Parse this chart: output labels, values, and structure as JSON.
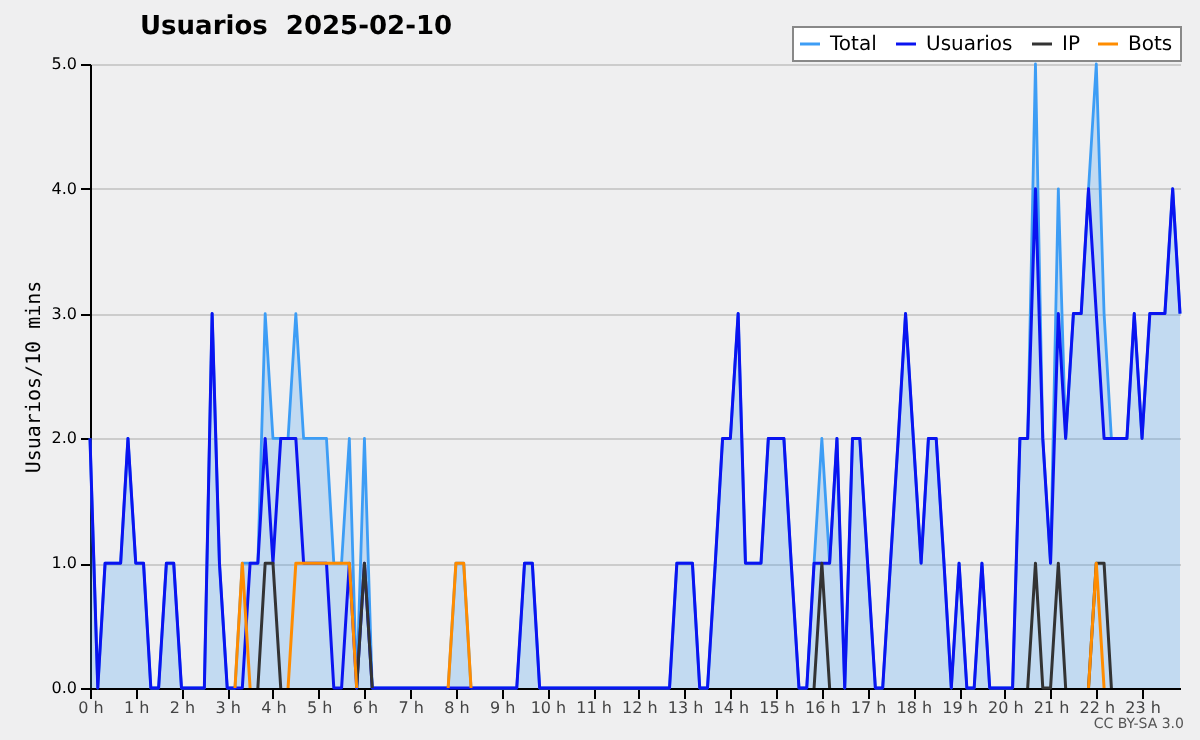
{
  "chart_data": {
    "type": "line",
    "title": "Usuarios  2025-02-10",
    "ylabel": "Usuarios/10 mins",
    "annotations": [
      "CC BY-SA 3.0"
    ],
    "x": [
      0,
      0.17,
      0.33,
      0.5,
      0.67,
      0.83,
      1,
      1.17,
      1.33,
      1.5,
      1.67,
      1.83,
      2,
      2.17,
      2.33,
      2.5,
      2.67,
      2.83,
      3,
      3.17,
      3.33,
      3.5,
      3.67,
      3.83,
      4,
      4.17,
      4.33,
      4.5,
      4.67,
      4.83,
      5,
      5.17,
      5.33,
      5.5,
      5.67,
      5.83,
      6,
      6.17,
      6.33,
      6.5,
      6.67,
      6.83,
      7,
      7.17,
      7.33,
      7.5,
      7.67,
      7.83,
      8,
      8.17,
      8.33,
      8.5,
      8.67,
      8.83,
      9,
      9.17,
      9.33,
      9.5,
      9.67,
      9.83,
      10,
      10.17,
      10.33,
      10.5,
      10.67,
      10.83,
      11,
      11.17,
      11.33,
      11.5,
      11.67,
      11.83,
      12,
      12.17,
      12.33,
      12.5,
      12.67,
      12.83,
      13,
      13.17,
      13.33,
      13.5,
      13.67,
      13.83,
      14,
      14.17,
      14.33,
      14.5,
      14.67,
      14.83,
      15,
      15.17,
      15.33,
      15.5,
      15.67,
      15.83,
      16,
      16.17,
      16.33,
      16.5,
      16.67,
      16.83,
      17,
      17.17,
      17.33,
      17.5,
      17.67,
      17.83,
      18,
      18.17,
      18.33,
      18.5,
      18.67,
      18.83,
      19,
      19.17,
      19.33,
      19.5,
      19.67,
      19.83,
      20,
      20.17,
      20.33,
      20.5,
      20.67,
      20.83,
      21,
      21.17,
      21.33,
      21.5,
      21.67,
      21.83,
      22,
      22.17,
      22.33,
      22.5,
      22.67,
      22.83,
      23,
      23.17,
      23.33,
      23.5,
      23.67,
      23.83
    ],
    "series": [
      {
        "name": "Total",
        "type": "area",
        "color": "#3d9df5",
        "values": [
          2,
          0,
          1,
          1,
          1,
          2,
          1,
          1,
          0,
          0,
          1,
          1,
          0,
          0,
          0,
          0,
          3,
          1,
          0,
          0,
          1,
          1,
          1,
          3,
          2,
          2,
          2,
          3,
          2,
          2,
          2,
          2,
          1,
          1,
          2,
          0,
          2,
          0,
          0,
          0,
          0,
          0,
          0,
          0,
          0,
          0,
          0,
          0,
          1,
          1,
          0,
          0,
          0,
          0,
          0,
          0,
          0,
          1,
          1,
          0,
          0,
          0,
          0,
          0,
          0,
          0,
          0,
          0,
          0,
          0,
          0,
          0,
          0,
          0,
          0,
          0,
          0,
          1,
          1,
          1,
          0,
          0,
          1,
          2,
          2,
          3,
          1,
          1,
          1,
          2,
          2,
          2,
          1,
          0,
          0,
          1,
          2,
          1,
          2,
          0,
          2,
          2,
          1,
          0,
          0,
          1,
          2,
          3,
          2,
          1,
          2,
          2,
          1,
          0,
          1,
          0,
          0,
          1,
          0,
          0,
          0,
          0,
          2,
          2,
          5,
          2,
          1,
          4,
          2,
          3,
          3,
          4,
          5,
          3,
          2,
          2,
          2,
          3,
          2,
          3,
          3,
          3,
          4,
          3
        ]
      },
      {
        "name": "Usuarios",
        "color": "#0a14f0",
        "values": [
          2,
          0,
          1,
          1,
          1,
          2,
          1,
          1,
          0,
          0,
          1,
          1,
          0,
          0,
          0,
          0,
          3,
          1,
          0,
          0,
          0,
          1,
          1,
          2,
          1,
          2,
          2,
          2,
          1,
          1,
          1,
          1,
          0,
          0,
          1,
          0,
          1,
          0,
          0,
          0,
          0,
          0,
          0,
          0,
          0,
          0,
          0,
          0,
          0,
          0,
          0,
          0,
          0,
          0,
          0,
          0,
          0,
          1,
          1,
          0,
          0,
          0,
          0,
          0,
          0,
          0,
          0,
          0,
          0,
          0,
          0,
          0,
          0,
          0,
          0,
          0,
          0,
          1,
          1,
          1,
          0,
          0,
          1,
          2,
          2,
          3,
          1,
          1,
          1,
          2,
          2,
          2,
          1,
          0,
          0,
          1,
          1,
          1,
          2,
          0,
          2,
          2,
          1,
          0,
          0,
          1,
          2,
          3,
          2,
          1,
          2,
          2,
          1,
          0,
          1,
          0,
          0,
          1,
          0,
          0,
          0,
          0,
          2,
          2,
          4,
          2,
          1,
          3,
          2,
          3,
          3,
          4,
          3,
          2,
          2,
          2,
          2,
          3,
          2,
          3,
          3,
          3,
          4,
          3
        ]
      },
      {
        "name": "IP",
        "color": "#333333",
        "values": [
          null,
          null,
          null,
          null,
          null,
          null,
          null,
          null,
          null,
          null,
          null,
          null,
          null,
          null,
          null,
          null,
          null,
          null,
          null,
          null,
          null,
          null,
          0,
          1,
          1,
          0,
          null,
          null,
          null,
          null,
          null,
          null,
          null,
          null,
          null,
          0,
          1,
          0,
          null,
          null,
          null,
          null,
          null,
          null,
          null,
          null,
          null,
          null,
          null,
          null,
          null,
          null,
          null,
          null,
          null,
          null,
          null,
          null,
          null,
          null,
          null,
          null,
          null,
          null,
          null,
          null,
          null,
          null,
          null,
          null,
          null,
          null,
          null,
          null,
          null,
          null,
          null,
          null,
          null,
          null,
          null,
          null,
          null,
          null,
          null,
          null,
          null,
          null,
          null,
          null,
          null,
          null,
          null,
          null,
          null,
          0,
          1,
          0,
          null,
          null,
          null,
          null,
          null,
          null,
          null,
          null,
          null,
          null,
          null,
          null,
          null,
          null,
          null,
          null,
          null,
          null,
          null,
          null,
          null,
          null,
          null,
          null,
          null,
          0,
          1,
          0,
          0,
          1,
          0,
          null,
          null,
          0,
          1,
          1,
          0,
          null,
          null,
          null,
          null,
          null,
          null,
          null,
          null,
          null
        ]
      },
      {
        "name": "Bots",
        "color": "#ff8c00",
        "values": [
          null,
          null,
          null,
          null,
          null,
          null,
          null,
          null,
          null,
          null,
          null,
          null,
          null,
          null,
          null,
          null,
          null,
          null,
          null,
          0,
          1,
          0,
          null,
          null,
          null,
          null,
          0,
          1,
          1,
          1,
          1,
          1,
          1,
          1,
          1,
          0,
          null,
          null,
          null,
          null,
          null,
          null,
          null,
          null,
          null,
          null,
          null,
          0,
          1,
          1,
          0,
          null,
          null,
          null,
          null,
          null,
          null,
          null,
          null,
          null,
          null,
          null,
          null,
          null,
          null,
          null,
          null,
          null,
          null,
          null,
          null,
          null,
          null,
          null,
          null,
          null,
          null,
          null,
          null,
          null,
          null,
          null,
          null,
          null,
          null,
          null,
          null,
          null,
          null,
          null,
          null,
          null,
          null,
          null,
          null,
          null,
          null,
          null,
          null,
          null,
          null,
          null,
          null,
          null,
          null,
          null,
          null,
          null,
          null,
          null,
          null,
          null,
          null,
          null,
          null,
          null,
          null,
          null,
          null,
          null,
          null,
          null,
          null,
          null,
          null,
          null,
          null,
          null,
          null,
          null,
          null,
          0,
          1,
          0,
          null,
          null,
          null,
          null,
          null,
          null,
          null,
          null,
          null,
          null
        ]
      }
    ],
    "xlim": [
      0,
      23.83
    ],
    "xticks": [
      {
        "value": 0,
        "label": "0 h"
      },
      {
        "value": 1,
        "label": "1 h"
      },
      {
        "value": 2,
        "label": "2 h"
      },
      {
        "value": 3,
        "label": "3 h"
      },
      {
        "value": 4,
        "label": "4 h"
      },
      {
        "value": 5,
        "label": "5 h"
      },
      {
        "value": 6,
        "label": "6 h"
      },
      {
        "value": 7,
        "label": "7 h"
      },
      {
        "value": 8,
        "label": "8 h"
      },
      {
        "value": 9,
        "label": "9 h"
      },
      {
        "value": 10,
        "label": "10 h"
      },
      {
        "value": 11,
        "label": "11 h"
      },
      {
        "value": 12,
        "label": "12 h"
      },
      {
        "value": 13,
        "label": "13 h"
      },
      {
        "value": 14,
        "label": "14 h"
      },
      {
        "value": 15,
        "label": "15 h"
      },
      {
        "value": 16,
        "label": "16 h"
      },
      {
        "value": 17,
        "label": "17 h"
      },
      {
        "value": 18,
        "label": "18 h"
      },
      {
        "value": 19,
        "label": "19 h"
      },
      {
        "value": 20,
        "label": "20 h"
      },
      {
        "value": 21,
        "label": "21 h"
      },
      {
        "value": 22,
        "label": "22 h"
      },
      {
        "value": 23,
        "label": "23 h"
      }
    ],
    "ylim": [
      0,
      5
    ],
    "yticks": [
      {
        "value": 0,
        "label": "0.0"
      },
      {
        "value": 1,
        "label": "1.0"
      },
      {
        "value": 2,
        "label": "2.0"
      },
      {
        "value": 3,
        "label": "3.0"
      },
      {
        "value": 4,
        "label": "4.0"
      },
      {
        "value": 5,
        "label": "5.0"
      }
    ],
    "grid": "y",
    "legend": "top right"
  }
}
